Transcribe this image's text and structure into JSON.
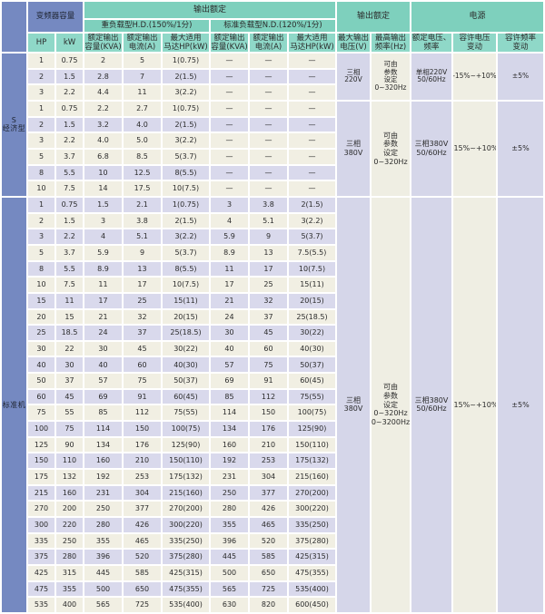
{
  "colors": {
    "teal": "#7ed0bd",
    "teal_light": "#8fd8c8",
    "blue": "#7589c1",
    "cream": "#f1efe3",
    "lavender": "#d9d9ec",
    "merged_cream": "#efeee3",
    "merged_lavender": "#d5d6e9"
  },
  "header": {
    "capacity": "变频器容量",
    "output_rating": "输出额定",
    "hd_band": "重负载型H.D.(150%/1分)",
    "nd_band": "标准负载型N.D.(120%/1分)",
    "power_band": "电源",
    "hp": "HP",
    "kw": "kW",
    "col_kva": "额定输出\n容量(KVA)",
    "col_amp": "额定输出\n电流(A)",
    "col_motor": "最大适用\n马达HP(kW)",
    "col_maxv": "最大输出\n电压(V)",
    "col_maxhz": "最高输出\n频率(Hz)",
    "col_ratedv": "额定电压、\n频率",
    "col_vfluct": "容许电压\n变动",
    "col_ffluct": "容许频率\n变动"
  },
  "sections": [
    {
      "label": "S\n经济型",
      "groups": [
        {
          "stripes": [
            "c",
            "l",
            "c"
          ],
          "rows": [
            [
              "1",
              "0.75",
              "2",
              "5",
              "1(0.75)",
              "—",
              "—",
              "—"
            ],
            [
              "2",
              "1.5",
              "2.8",
              "7",
              "2(1.5)",
              "—",
              "—",
              "—"
            ],
            [
              "3",
              "2.2",
              "4.4",
              "11",
              "3(2.2)",
              "—",
              "—",
              "—"
            ]
          ],
          "merged": {
            "voltage": "三相\n220V",
            "freq": "可由\n参数\n设定\n0~320Hz",
            "power": "单相220V\n50/60Hz",
            "vfluct": "-15%~+10%",
            "ffluct": "±5%"
          }
        },
        {
          "stripes": [
            "c",
            "l",
            "c",
            "c",
            "l",
            "c"
          ],
          "rows": [
            [
              "1",
              "0.75",
              "2.2",
              "2.7",
              "1(0.75)",
              "—",
              "—",
              "—"
            ],
            [
              "2",
              "1.5",
              "3.2",
              "4.0",
              "2(1.5)",
              "—",
              "—",
              "—"
            ],
            [
              "3",
              "2.2",
              "4.0",
              "5.0",
              "3(2.2)",
              "—",
              "—",
              "—"
            ],
            [
              "5",
              "3.7",
              "6.8",
              "8.5",
              "5(3.7)",
              "—",
              "—",
              "—"
            ],
            [
              "8",
              "5.5",
              "10",
              "12.5",
              "8(5.5)",
              "—",
              "—",
              "—"
            ],
            [
              "10",
              "7.5",
              "14",
              "17.5",
              "10(7.5)",
              "—",
              "—",
              "—"
            ]
          ],
          "merged": {
            "voltage": "三相\n380V",
            "freq": "可由\n参数\n设定\n0~320Hz",
            "power": "三相380V\n50/60Hz",
            "vfluct": "-15%~+10%",
            "ffluct": "±5%"
          }
        }
      ]
    },
    {
      "label": "标准机",
      "groups": [
        {
          "stripes": [
            "l",
            "c",
            "l",
            "c",
            "l",
            "c",
            "l",
            "c",
            "l",
            "c",
            "l",
            "c",
            "l",
            "c",
            "l",
            "c",
            "l",
            "c",
            "l",
            "c",
            "l",
            "c",
            "l",
            "c",
            "l",
            "c"
          ],
          "rows": [
            [
              "1",
              "0.75",
              "1.5",
              "2.1",
              "1(0.75)",
              "3",
              "3.8",
              "2(1.5)"
            ],
            [
              "2",
              "1.5",
              "3",
              "3.8",
              "2(1.5)",
              "4",
              "5.1",
              "3(2.2)"
            ],
            [
              "3",
              "2.2",
              "4",
              "5.1",
              "3(2.2)",
              "5.9",
              "9",
              "5(3.7)"
            ],
            [
              "5",
              "3.7",
              "5.9",
              "9",
              "5(3.7)",
              "8.9",
              "13",
              "7.5(5.5)"
            ],
            [
              "8",
              "5.5",
              "8.9",
              "13",
              "8(5.5)",
              "11",
              "17",
              "10(7.5)"
            ],
            [
              "10",
              "7.5",
              "11",
              "17",
              "10(7.5)",
              "17",
              "25",
              "15(11)"
            ],
            [
              "15",
              "11",
              "17",
              "25",
              "15(11)",
              "21",
              "32",
              "20(15)"
            ],
            [
              "20",
              "15",
              "21",
              "32",
              "20(15)",
              "24",
              "37",
              "25(18.5)"
            ],
            [
              "25",
              "18.5",
              "24",
              "37",
              "25(18.5)",
              "30",
              "45",
              "30(22)"
            ],
            [
              "30",
              "22",
              "30",
              "45",
              "30(22)",
              "40",
              "60",
              "40(30)"
            ],
            [
              "40",
              "30",
              "40",
              "60",
              "40(30)",
              "57",
              "75",
              "50(37)"
            ],
            [
              "50",
              "37",
              "57",
              "75",
              "50(37)",
              "69",
              "91",
              "60(45)"
            ],
            [
              "60",
              "45",
              "69",
              "91",
              "60(45)",
              "85",
              "112",
              "75(55)"
            ],
            [
              "75",
              "55",
              "85",
              "112",
              "75(55)",
              "114",
              "150",
              "100(75)"
            ],
            [
              "100",
              "75",
              "114",
              "150",
              "100(75)",
              "134",
              "176",
              "125(90)"
            ],
            [
              "125",
              "90",
              "134",
              "176",
              "125(90)",
              "160",
              "210",
              "150(110)"
            ],
            [
              "150",
              "110",
              "160",
              "210",
              "150(110)",
              "192",
              "253",
              "175(132)"
            ],
            [
              "175",
              "132",
              "192",
              "253",
              "175(132)",
              "231",
              "304",
              "215(160)"
            ],
            [
              "215",
              "160",
              "231",
              "304",
              "215(160)",
              "250",
              "377",
              "270(200)"
            ],
            [
              "270",
              "200",
              "250",
              "377",
              "270(200)",
              "280",
              "426",
              "300(220)"
            ],
            [
              "300",
              "220",
              "280",
              "426",
              "300(220)",
              "355",
              "465",
              "335(250)"
            ],
            [
              "335",
              "250",
              "355",
              "465",
              "335(250)",
              "396",
              "520",
              "375(280)"
            ],
            [
              "375",
              "280",
              "396",
              "520",
              "375(280)",
              "445",
              "585",
              "425(315)"
            ],
            [
              "425",
              "315",
              "445",
              "585",
              "425(315)",
              "500",
              "650",
              "475(355)"
            ],
            [
              "475",
              "355",
              "500",
              "650",
              "475(355)",
              "565",
              "725",
              "535(400)"
            ],
            [
              "535",
              "400",
              "565",
              "725",
              "535(400)",
              "630",
              "820",
              "600(450)"
            ]
          ],
          "merged": {
            "voltage": "三相\n380V",
            "freq": "可由\n参数\n设定\n0~320Hz\n0~3200Hz",
            "power": "三相380V\n50/60Hz",
            "vfluct": "-15%~+10%",
            "ffluct": "±5%"
          }
        }
      ]
    }
  ]
}
